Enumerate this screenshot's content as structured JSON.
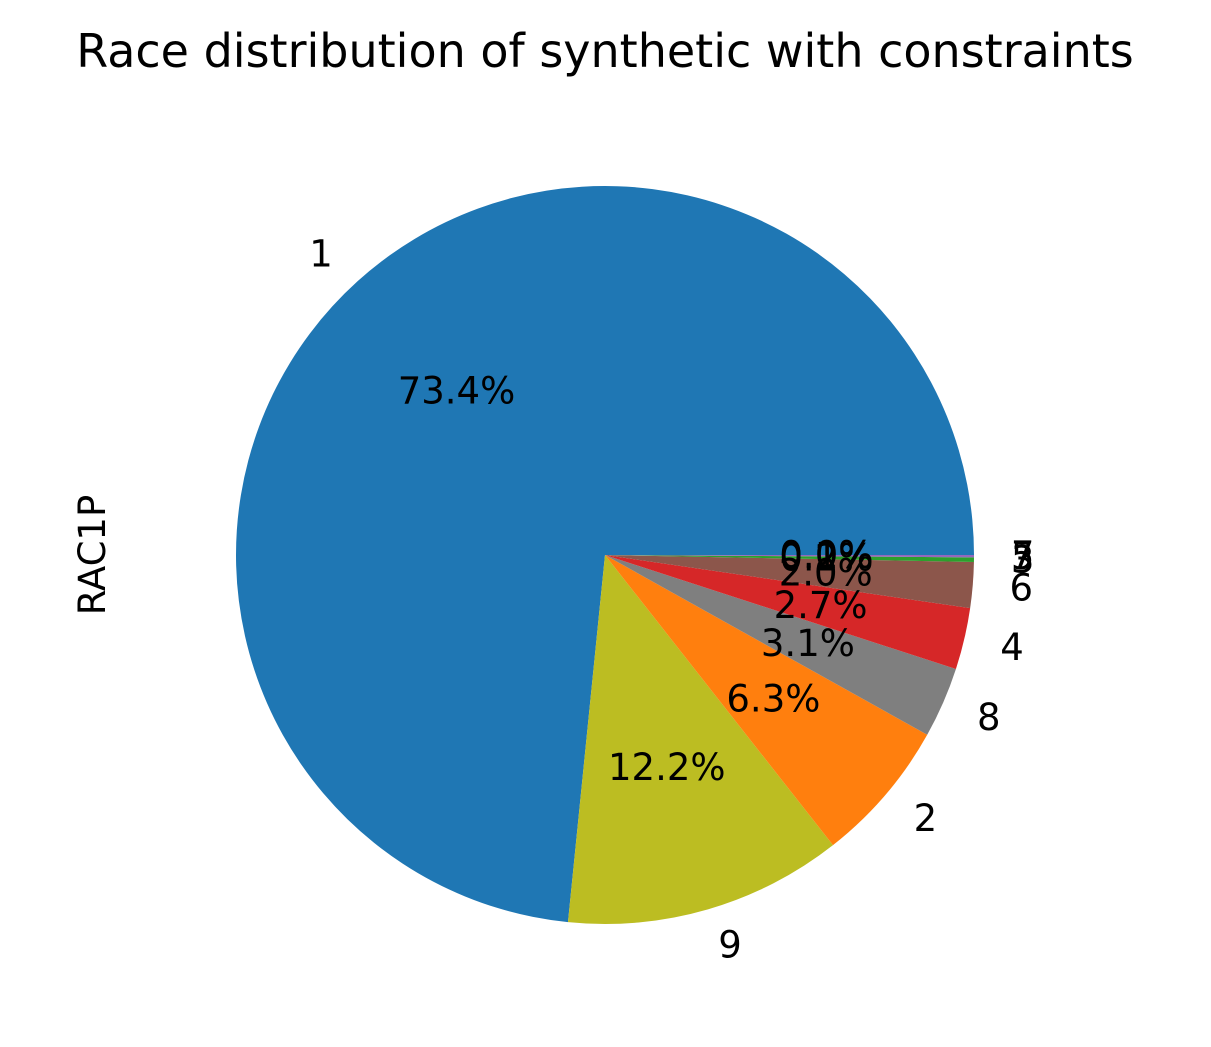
{
  "chart_data": {
    "type": "pie",
    "title": "Race distribution of synthetic with constraints",
    "ylabel": "RAC1P",
    "start_angle_deg": 0,
    "direction": "counterclockwise",
    "slices": [
      {
        "category": "1",
        "value": 73.4,
        "label": "73.4%",
        "color": "#1f77b4"
      },
      {
        "category": "9",
        "value": 12.2,
        "label": "12.2%",
        "color": "#bcbd22"
      },
      {
        "category": "2",
        "value": 6.3,
        "label": "6.3%",
        "color": "#ff7f0e"
      },
      {
        "category": "8",
        "value": 3.1,
        "label": "3.1%",
        "color": "#7f7f7f"
      },
      {
        "category": "4",
        "value": 2.7,
        "label": "2.7%",
        "color": "#d62728"
      },
      {
        "category": "6",
        "value": 2.0,
        "label": "2.0%",
        "color": "#8c564b"
      },
      {
        "category": "3",
        "value": 0.2,
        "label": "0.2%",
        "color": "#2ca02c"
      },
      {
        "category": "5",
        "value": 0.1,
        "label": "0.1%",
        "color": "#9467bd"
      },
      {
        "category": "7",
        "value": 0.0,
        "label": "0.0%",
        "color": "#e377c2"
      }
    ]
  }
}
